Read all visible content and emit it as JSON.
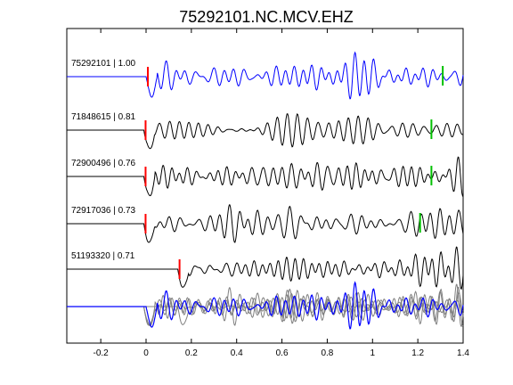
{
  "chart_data": {
    "type": "line",
    "title": "75292101.NC.MCV.EHZ",
    "xlabel": "",
    "ylabel": "",
    "xlim": [
      -0.35,
      1.4
    ],
    "xticks": [
      -0.2,
      0,
      0.2,
      0.4,
      0.6,
      0.8,
      1,
      1.2,
      1.4
    ],
    "xtick_labels": [
      "-0.2",
      "0",
      "0.2",
      "0.4",
      "0.6",
      "0.8",
      "1",
      "1.2",
      "1.4"
    ],
    "grid": false,
    "legend": "none",
    "colors": {
      "reference": "#0000ff",
      "trace": "#000000",
      "stack": "#808080",
      "p_pick": "#ff0000",
      "s_pick": "#00c000"
    },
    "series": [
      {
        "label": "75292101 | 1.00",
        "color": "#0000ff",
        "p_pick": 0.0,
        "s_pick": 1.31,
        "seed": 1
      },
      {
        "label": "71848615 | 0.81",
        "color": "#000000",
        "p_pick": -0.01,
        "s_pick": 1.26,
        "seed": 2
      },
      {
        "label": "72900496 | 0.76",
        "color": "#000000",
        "p_pick": -0.01,
        "s_pick": 1.26,
        "seed": 3
      },
      {
        "label": "72917036 | 0.73",
        "color": "#000000",
        "p_pick": -0.01,
        "s_pick": 1.21,
        "seed": 4
      },
      {
        "label": "51193320 | 0.71",
        "color": "#000000",
        "p_pick": 0.14,
        "s_pick": null,
        "seed": 5
      }
    ]
  }
}
